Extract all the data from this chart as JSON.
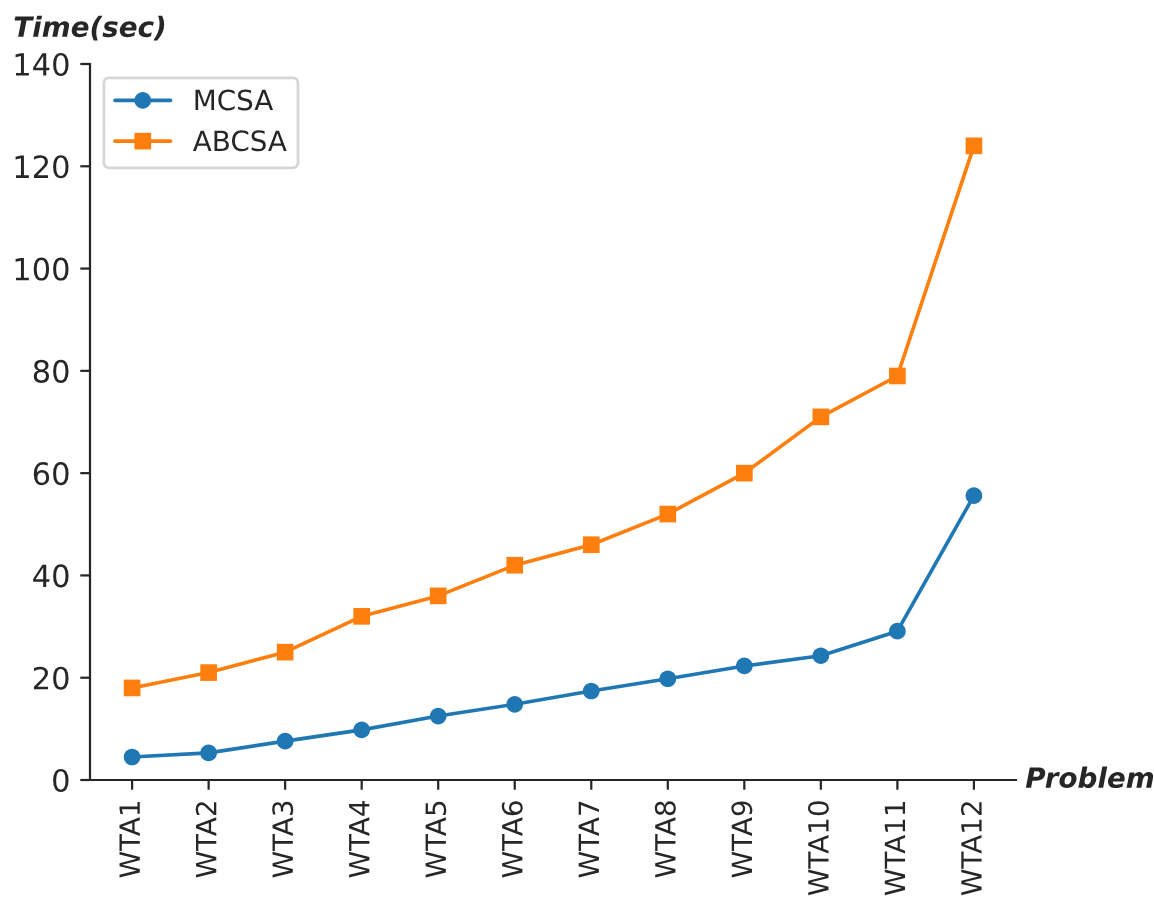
{
  "chart_data": {
    "type": "line",
    "xlabel": "Problem",
    "ylabel": "Time(sec)",
    "categories": [
      "WTA1",
      "WTA2",
      "WTA3",
      "WTA4",
      "WTA5",
      "WTA6",
      "WTA7",
      "WTA8",
      "WTA9",
      "WTA10",
      "WTA11",
      "WTA12"
    ],
    "series": [
      {
        "name": "MCSA",
        "color": "#1f77b4",
        "marker": "circle",
        "values": [
          4.5,
          5.3,
          7.6,
          9.8,
          12.5,
          14.8,
          17.4,
          19.8,
          22.3,
          24.3,
          29.1,
          55.6
        ]
      },
      {
        "name": "ABCSA",
        "color": "#ff7f0e",
        "marker": "square",
        "values": [
          18,
          21,
          25,
          32,
          36,
          42,
          46,
          52,
          60,
          71,
          79,
          124
        ]
      }
    ],
    "ylim": [
      0,
      140
    ],
    "yticks": [
      0,
      20,
      40,
      60,
      80,
      100,
      120,
      140
    ],
    "grid": false,
    "legend": "top left",
    "line_style": "solid"
  }
}
